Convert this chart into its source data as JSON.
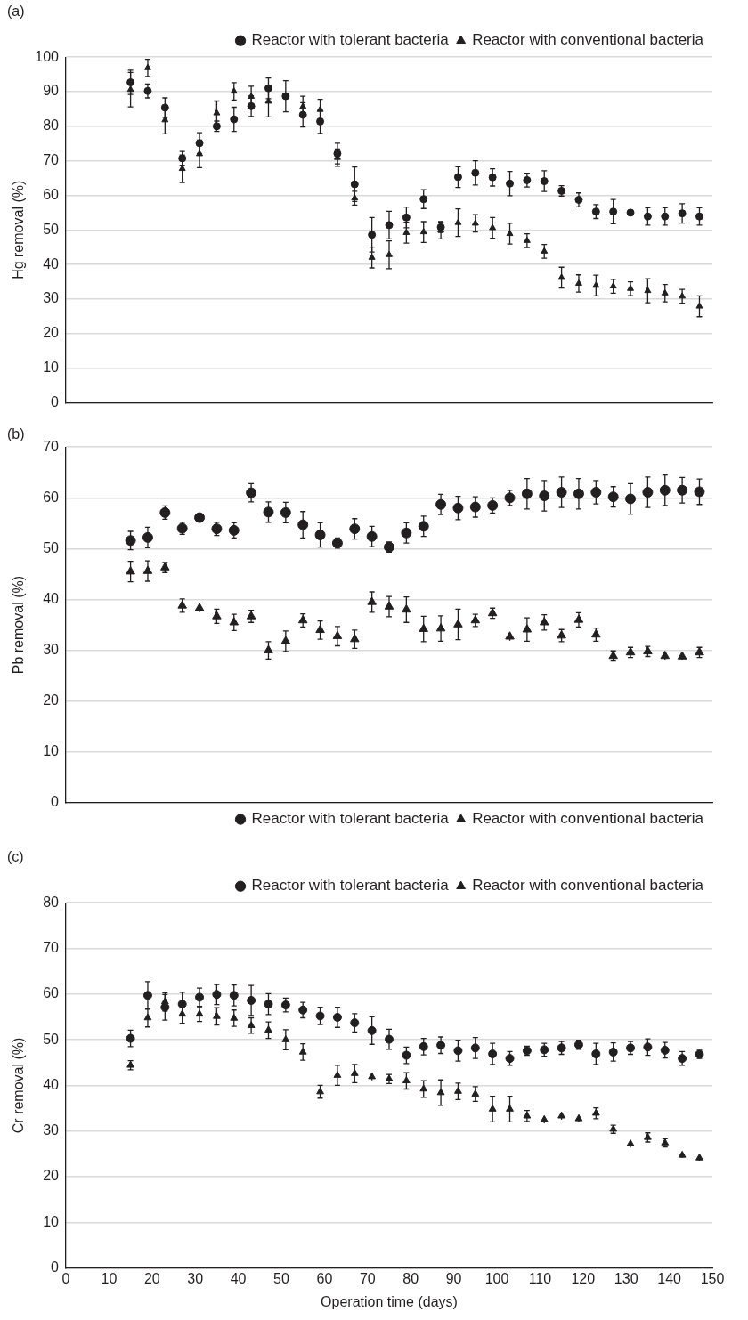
{
  "chart_data": [
    {
      "type": "scatter",
      "title": "(a)",
      "ylabel": "Hg removal (%)",
      "xlim": [
        0,
        150
      ],
      "ylim": [
        0,
        100
      ],
      "yticks": [
        0,
        10,
        20,
        30,
        40,
        50,
        60,
        70,
        80,
        90,
        100
      ],
      "grid": "y",
      "legend": "top right",
      "tick_labels": "y",
      "x": [
        15,
        19,
        23,
        27,
        31,
        35,
        39,
        43,
        47,
        51,
        55,
        59,
        63,
        67,
        71,
        75,
        79,
        83,
        87,
        91,
        95,
        99,
        103,
        107,
        111,
        115,
        119,
        123,
        127,
        131,
        135,
        139,
        143,
        147
      ],
      "series": [
        {
          "name": "Reactor with tolerant bacteria",
          "color": "#231f20",
          "marker": "circle",
          "values": [
            92.7,
            90.2,
            85.4,
            70.7,
            75.1,
            80.0,
            82.0,
            85.8,
            91.0,
            88.7,
            83.3,
            81.4,
            72.1,
            63.2,
            48.6,
            51.4,
            53.6,
            58.9,
            50.8,
            65.3,
            66.5,
            65.2,
            63.4,
            64.4,
            64.1,
            61.3,
            58.7,
            55.3,
            55.3,
            55.0,
            53.9,
            53.9,
            54.8,
            53.9
          ],
          "errors": [
            3.5,
            2,
            2.8,
            2,
            3,
            1.5,
            3.5,
            3,
            3,
            4.5,
            3.5,
            3.5,
            3,
            5,
            5,
            4,
            3,
            2.7,
            1.5,
            3,
            3.5,
            2.5,
            3.5,
            2,
            3,
            1.5,
            2,
            2,
            3.5,
            1,
            2.5,
            2.5,
            2.8,
            2.5
          ]
        },
        {
          "name": "Reactor with conventional bacteria",
          "color": "#231f20",
          "marker": "triangle",
          "values": [
            90.6,
            96.9,
            81.8,
            67.7,
            72.0,
            83.8,
            90.1,
            88.6,
            87.2,
            null,
            85.7,
            84.8,
            70.9,
            59.2,
            42.0,
            42.8,
            49.2,
            49.4,
            49.9,
            52.1,
            51.9,
            50.6,
            48.9,
            46.9,
            43.8,
            36.2,
            34.5,
            33.9,
            33.7,
            33.0,
            32.4,
            31.7,
            30.8,
            27.9
          ],
          "errors": [
            5,
            2.5,
            4,
            4,
            4,
            3.5,
            2.5,
            3,
            4.5,
            null,
            3,
            3,
            2.5,
            2,
            3,
            4,
            3,
            3,
            2.5,
            4,
            2.5,
            3,
            3,
            2,
            2,
            3,
            2.5,
            3,
            2,
            2,
            3.5,
            2.5,
            2,
            3
          ]
        }
      ]
    },
    {
      "type": "scatter",
      "title": "(b)",
      "ylabel": "Pb removal (%)",
      "xlim": [
        0,
        150
      ],
      "ylim": [
        0,
        70
      ],
      "yticks": [
        0,
        10,
        20,
        30,
        40,
        50,
        60,
        70
      ],
      "grid": "y",
      "legend": "bottom right",
      "tick_labels": "y",
      "x": [
        15,
        19,
        23,
        27,
        31,
        35,
        39,
        43,
        47,
        51,
        55,
        59,
        63,
        67,
        71,
        75,
        79,
        83,
        87,
        91,
        95,
        99,
        103,
        107,
        111,
        115,
        119,
        123,
        127,
        131,
        135,
        139,
        143,
        147
      ],
      "series": [
        {
          "name": "Reactor with tolerant bacteria",
          "color": "#231f20",
          "marker": "circle",
          "values": [
            51.6,
            52.2,
            57.1,
            54.0,
            56.1,
            53.9,
            53.6,
            61.0,
            57.2,
            57.1,
            54.7,
            52.7,
            51.1,
            53.9,
            52.4,
            50.3,
            53.1,
            54.4,
            58.7,
            58.0,
            58.2,
            58.5,
            60.0,
            60.8,
            60.4,
            61.1,
            60.8,
            61.1,
            60.2,
            59.8,
            61.1,
            61.5,
            61.5,
            61.2
          ],
          "errors": [
            1.8,
            2,
            1.3,
            1.2,
            0.8,
            1.3,
            1.5,
            1.8,
            2,
            2,
            2.6,
            2.4,
            1,
            2,
            2,
            1,
            2,
            2,
            2,
            2.3,
            2,
            1.5,
            1.5,
            3,
            3,
            3,
            3,
            2.3,
            2,
            3,
            3,
            3,
            2.5,
            2.5
          ]
        },
        {
          "name": "Reactor with conventional bacteria",
          "color": "#231f20",
          "marker": "triangle",
          "values": [
            45.5,
            45.6,
            46.3,
            38.8,
            38.3,
            36.7,
            35.5,
            36.7,
            30.0,
            31.8,
            35.9,
            34.0,
            32.8,
            32.2,
            39.5,
            38.6,
            38.0,
            34.2,
            34.3,
            35.1,
            35.9,
            37.3,
            32.7,
            34.1,
            35.5,
            32.9,
            36.0,
            33.1,
            28.9,
            29.6,
            29.8,
            28.9,
            28.8,
            29.6
          ],
          "errors": [
            2,
            2,
            1,
            1.3,
            0.8,
            1.4,
            1.6,
            1.2,
            1.7,
            2,
            1.3,
            1.8,
            1.9,
            1.8,
            2,
            2,
            2.5,
            2.5,
            2.5,
            3,
            1.2,
            1,
            0.8,
            2.3,
            1.5,
            1.2,
            1.4,
            1.3,
            1,
            1,
            1,
            0.8,
            0.6,
            1
          ]
        }
      ]
    },
    {
      "type": "scatter",
      "title": "(c)",
      "xlabel": "Operation time (days)",
      "ylabel": "Cr removal (%)",
      "xlim": [
        0,
        150
      ],
      "xticks": [
        0,
        10,
        20,
        30,
        40,
        50,
        60,
        70,
        80,
        90,
        100,
        110,
        120,
        130,
        140,
        150
      ],
      "ylim": [
        0,
        80
      ],
      "yticks": [
        0,
        10,
        20,
        30,
        40,
        50,
        60,
        70,
        80
      ],
      "grid": "y",
      "legend": "top right",
      "x": [
        15,
        19,
        23,
        27,
        31,
        35,
        39,
        43,
        47,
        51,
        55,
        59,
        63,
        67,
        71,
        75,
        79,
        83,
        87,
        91,
        95,
        99,
        103,
        107,
        111,
        115,
        119,
        123,
        127,
        131,
        135,
        139,
        143,
        147
      ],
      "series": [
        {
          "name": "Reactor with tolerant bacteria",
          "color": "#231f20",
          "marker": "circle",
          "values": [
            50.3,
            59.7,
            57.1,
            57.8,
            59.3,
            59.9,
            59.7,
            58.6,
            57.8,
            57.6,
            56.5,
            55.2,
            54.9,
            53.7,
            52.0,
            50.1,
            46.6,
            48.5,
            48.8,
            47.6,
            48.2,
            46.9,
            45.9,
            47.6,
            47.8,
            48.2,
            48.9,
            46.9,
            47.3,
            48.2,
            48.4,
            47.7,
            45.9,
            46.8
          ],
          "errors": [
            1.8,
            3,
            2.8,
            2.6,
            2,
            2.2,
            2.3,
            3.3,
            2.3,
            1.5,
            1.7,
            1.9,
            2.2,
            2,
            3,
            2.2,
            1.8,
            1.8,
            1.8,
            2.3,
            2.3,
            2.3,
            1.5,
            1,
            1.4,
            1.4,
            1,
            2.3,
            2,
            1.4,
            1.8,
            1.7,
            1.5,
            0.9
          ]
        },
        {
          "name": "Reactor with conventional bacteria",
          "color": "#231f20",
          "marker": "triangle",
          "values": [
            44.4,
            54.8,
            58.3,
            55.6,
            55.6,
            55.1,
            54.7,
            53.1,
            52.1,
            50.0,
            47.3,
            38.6,
            42.2,
            42.6,
            41.9,
            41.4,
            41.0,
            39.2,
            38.4,
            38.7,
            38.1,
            34.8,
            34.8,
            33.3,
            32.5,
            33.3,
            32.7,
            33.9,
            30.4,
            27.2,
            28.6,
            27.4,
            24.7,
            24.1
          ],
          "errors": [
            1,
            2,
            2,
            2,
            1.6,
            1.9,
            1.8,
            1.7,
            1.8,
            2.2,
            1.8,
            1.4,
            2.2,
            2,
            0.8,
            1,
            1.8,
            1.8,
            2.8,
            1.8,
            1.6,
            2.8,
            2.8,
            1.2,
            0.8,
            0.8,
            0.8,
            1.2,
            0.9,
            0.8,
            1,
            0.9,
            0.6,
            0.6
          ]
        }
      ]
    }
  ]
}
